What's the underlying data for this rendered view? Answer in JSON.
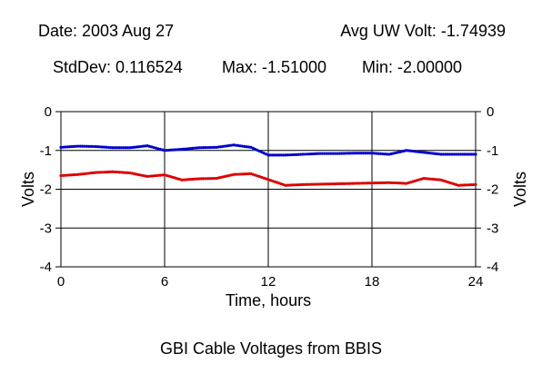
{
  "header": {
    "date": "Date: 2003 Aug 27",
    "avg": "Avg UW Volt: -1.74939",
    "stddev": "StdDev: 0.116524",
    "max": "Max: -1.51000",
    "min": "Min: -2.00000"
  },
  "footer": {
    "caption": "GBI Cable Voltages from BBIS"
  },
  "chart_data": {
    "type": "scatter",
    "xlabel": "Time, hours",
    "ylabel": "Volts",
    "xlim": [
      0,
      24
    ],
    "ylim": [
      -4,
      0
    ],
    "xticks": [
      0,
      6,
      12,
      18,
      24
    ],
    "yticks": [
      0,
      -1,
      -2,
      -3,
      -4
    ],
    "xtick_labels": [
      "0",
      "6",
      "12",
      "18",
      "24"
    ],
    "ytick_labels": [
      "0",
      "-1",
      "-2",
      "-3",
      "-4"
    ],
    "grid": true,
    "series": [
      {
        "color": "#0000cc",
        "x": [
          0,
          1,
          2,
          3,
          4,
          5,
          6,
          7,
          8,
          9,
          10,
          11,
          12,
          13,
          14,
          15,
          16,
          17,
          18,
          19,
          20,
          21,
          22,
          23,
          24
        ],
        "y": [
          -0.92,
          -0.89,
          -0.9,
          -0.93,
          -0.93,
          -0.88,
          -1.0,
          -0.97,
          -0.93,
          -0.92,
          -0.86,
          -0.92,
          -1.12,
          -1.12,
          -1.1,
          -1.08,
          -1.08,
          -1.07,
          -1.07,
          -1.1,
          -1.0,
          -1.05,
          -1.1,
          -1.1,
          -1.1
        ]
      },
      {
        "color": "#dd0000",
        "x": [
          0,
          1,
          2,
          3,
          4,
          5,
          6,
          7,
          8,
          9,
          10,
          11,
          12,
          13,
          14,
          15,
          16,
          17,
          18,
          19,
          20,
          21,
          22,
          23,
          24
        ],
        "y": [
          -1.65,
          -1.62,
          -1.57,
          -1.55,
          -1.58,
          -1.67,
          -1.63,
          -1.76,
          -1.73,
          -1.72,
          -1.62,
          -1.6,
          -1.75,
          -1.9,
          -1.88,
          -1.87,
          -1.86,
          -1.85,
          -1.84,
          -1.83,
          -1.85,
          -1.72,
          -1.76,
          -1.9,
          -1.88
        ]
      }
    ]
  }
}
